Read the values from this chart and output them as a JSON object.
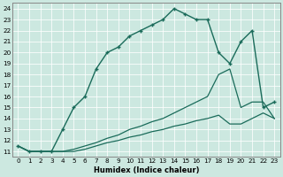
{
  "xlabel": "Humidex (Indice chaleur)",
  "background_color": "#cce8e0",
  "line_color": "#1a6b5a",
  "xlim": [
    -0.5,
    23.5
  ],
  "ylim": [
    10.5,
    24.5
  ],
  "x_ticks": [
    0,
    1,
    2,
    3,
    4,
    5,
    6,
    7,
    8,
    9,
    10,
    11,
    12,
    13,
    14,
    15,
    16,
    17,
    18,
    19,
    20,
    21,
    22,
    23
  ],
  "y_ticks": [
    11,
    12,
    13,
    14,
    15,
    16,
    17,
    18,
    19,
    20,
    21,
    22,
    23,
    24
  ],
  "main_line_x": [
    0,
    1,
    2,
    3,
    4,
    5,
    6,
    7,
    8,
    9,
    10,
    11,
    12,
    13,
    14,
    15,
    16,
    17,
    18,
    19,
    20,
    21,
    22,
    23
  ],
  "main_line_y": [
    11.5,
    11.0,
    11.0,
    11.0,
    13.0,
    15.0,
    16.0,
    18.5,
    20.0,
    20.5,
    21.5,
    22.0,
    22.5,
    23.0,
    24.0,
    23.5,
    23.0,
    23.0,
    20.0,
    19.0,
    21.0,
    22.0,
    15.0,
    15.5
  ],
  "line2_x": [
    0,
    1,
    2,
    3,
    4,
    5,
    6,
    7,
    8,
    9,
    10,
    11,
    12,
    13,
    14,
    15,
    16,
    17,
    18,
    19,
    20,
    21,
    22,
    23
  ],
  "line2_y": [
    11.5,
    11.0,
    11.0,
    11.0,
    11.0,
    11.2,
    11.5,
    11.8,
    12.2,
    12.5,
    13.0,
    13.3,
    13.7,
    14.0,
    14.5,
    15.0,
    15.5,
    16.0,
    18.0,
    18.5,
    15.0,
    15.5,
    15.5,
    14.0
  ],
  "line3_x": [
    0,
    1,
    2,
    3,
    4,
    5,
    6,
    7,
    8,
    9,
    10,
    11,
    12,
    13,
    14,
    15,
    16,
    17,
    18,
    19,
    20,
    21,
    22,
    23
  ],
  "line3_y": [
    11.5,
    11.0,
    11.0,
    11.0,
    11.0,
    11.0,
    11.2,
    11.5,
    11.8,
    12.0,
    12.3,
    12.5,
    12.8,
    13.0,
    13.3,
    13.5,
    13.8,
    14.0,
    14.3,
    13.5,
    13.5,
    14.0,
    14.5,
    14.0
  ]
}
